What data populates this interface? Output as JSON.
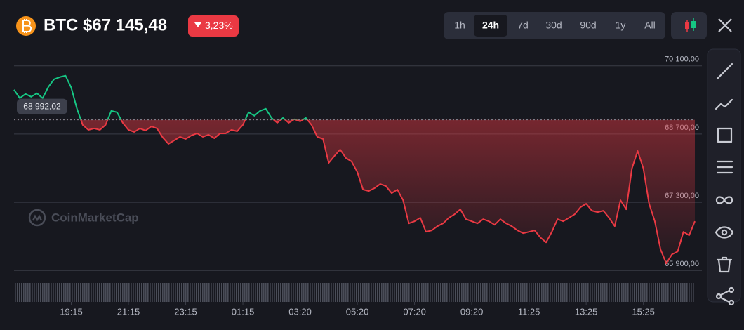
{
  "header": {
    "title": "BTC $67 145,48",
    "change": "3,23%",
    "timeframes": [
      "1h",
      "24h",
      "7d",
      "30d",
      "90d",
      "1y",
      "All"
    ],
    "selected": 1
  },
  "watermark": "CoinMarketCap",
  "chart_data": {
    "type": "line",
    "values": [
      69609,
      69436,
      69523,
      69465,
      69537,
      69436,
      69667,
      69826,
      69869,
      69898,
      69652,
      69220,
      68888,
      68786,
      68815,
      68786,
      68888,
      69176,
      69148,
      68931,
      68786,
      68743,
      68815,
      68772,
      68858,
      68815,
      68628,
      68498,
      68570,
      68642,
      68599,
      68671,
      68714,
      68642,
      68685,
      68613,
      68714,
      68714,
      68786,
      68757,
      68888,
      69148,
      69076,
      69176,
      69220,
      69032,
      68931,
      69032,
      68931,
      69004,
      68960,
      69032,
      68888,
      68642,
      68599,
      68108,
      68252,
      68382,
      68209,
      68137,
      67920,
      67560,
      67531,
      67589,
      67675,
      67632,
      67487,
      67560,
      67343,
      66867,
      66910,
      66982,
      66694,
      66723,
      66809,
      66867,
      66982,
      67054,
      67156,
      66953,
      66910,
      66867,
      66953,
      66910,
      66838,
      66953,
      66867,
      66809,
      66723,
      66665,
      66694,
      66723,
      66578,
      66477,
      66694,
      66953,
      66910,
      66982,
      67054,
      67199,
      67271,
      67127,
      67098,
      67127,
      66982,
      66809,
      67343,
      67156,
      67993,
      68353,
      67993,
      67271,
      66910,
      66333,
      66044,
      66232,
      66290,
      66694,
      66622,
      66910
    ],
    "color_up": "#16c784",
    "color_down": "#ea3943",
    "reference": {
      "value": 68992.02,
      "label": "68 992,02"
    },
    "ylim": [
      65760,
      70370
    ],
    "yticks": [
      {
        "value": 65900,
        "label": "65 900,00"
      },
      {
        "value": 67300,
        "label": "67 300,00"
      },
      {
        "value": 68700,
        "label": "68 700,00"
      },
      {
        "value": 70100,
        "label": "70 100,00"
      }
    ],
    "xticks": [
      {
        "value": 10,
        "label": "19:15"
      },
      {
        "value": 20,
        "label": "21:15"
      },
      {
        "value": 30,
        "label": "23:15"
      },
      {
        "value": 40,
        "label": "01:15"
      },
      {
        "value": 50,
        "label": "03:20"
      },
      {
        "value": 60,
        "label": "05:20"
      },
      {
        "value": 70,
        "label": "07:20"
      },
      {
        "value": 80,
        "label": "09:20"
      },
      {
        "value": 90,
        "label": "11:25"
      },
      {
        "value": 100,
        "label": "13:25"
      },
      {
        "value": 110,
        "label": "15:25"
      }
    ],
    "grid": true
  }
}
